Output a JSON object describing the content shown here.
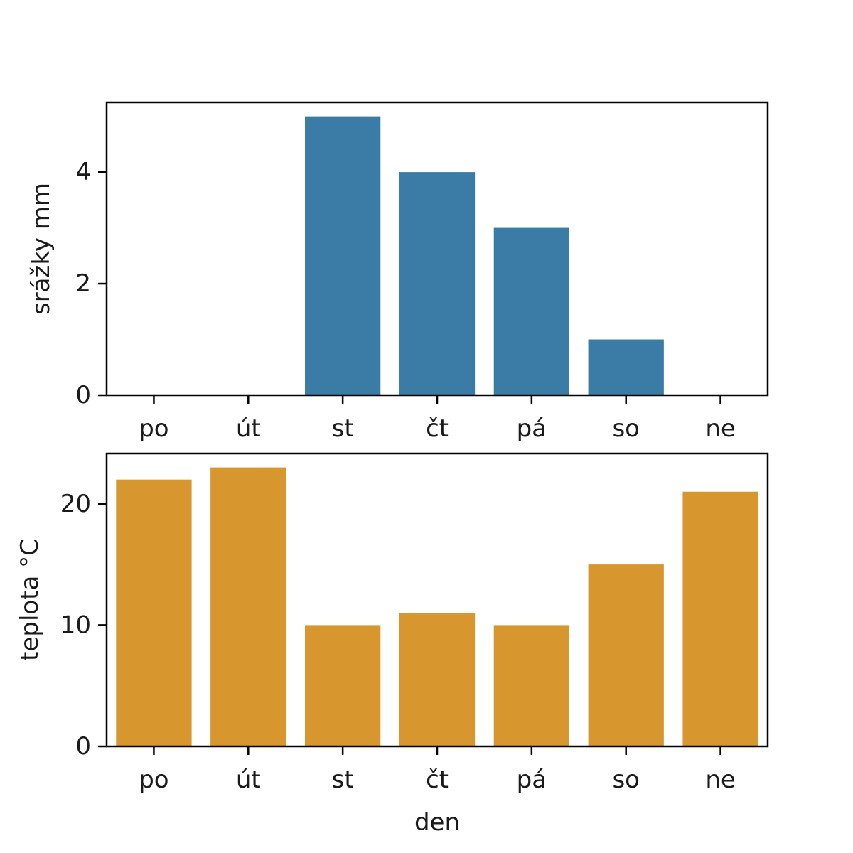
{
  "chart_data": [
    {
      "type": "bar",
      "categories": [
        "po",
        "út",
        "st",
        "čt",
        "pá",
        "so",
        "ne"
      ],
      "values": [
        0,
        0,
        5,
        4,
        3,
        1,
        0
      ],
      "xlabel": "",
      "ylabel": "srážky mm",
      "ylim": [
        0,
        5.25
      ],
      "yticks": [
        0,
        2,
        4
      ],
      "color": "#3a7ca5",
      "grid": false
    },
    {
      "type": "bar",
      "categories": [
        "po",
        "út",
        "st",
        "čt",
        "pá",
        "so",
        "ne"
      ],
      "values": [
        22,
        23,
        10,
        11,
        10,
        15,
        21
      ],
      "xlabel": "den",
      "ylabel": "teplota °C",
      "ylim": [
        0,
        24.15
      ],
      "yticks": [
        0,
        10,
        20
      ],
      "color": "#d8962e",
      "grid": false
    }
  ]
}
